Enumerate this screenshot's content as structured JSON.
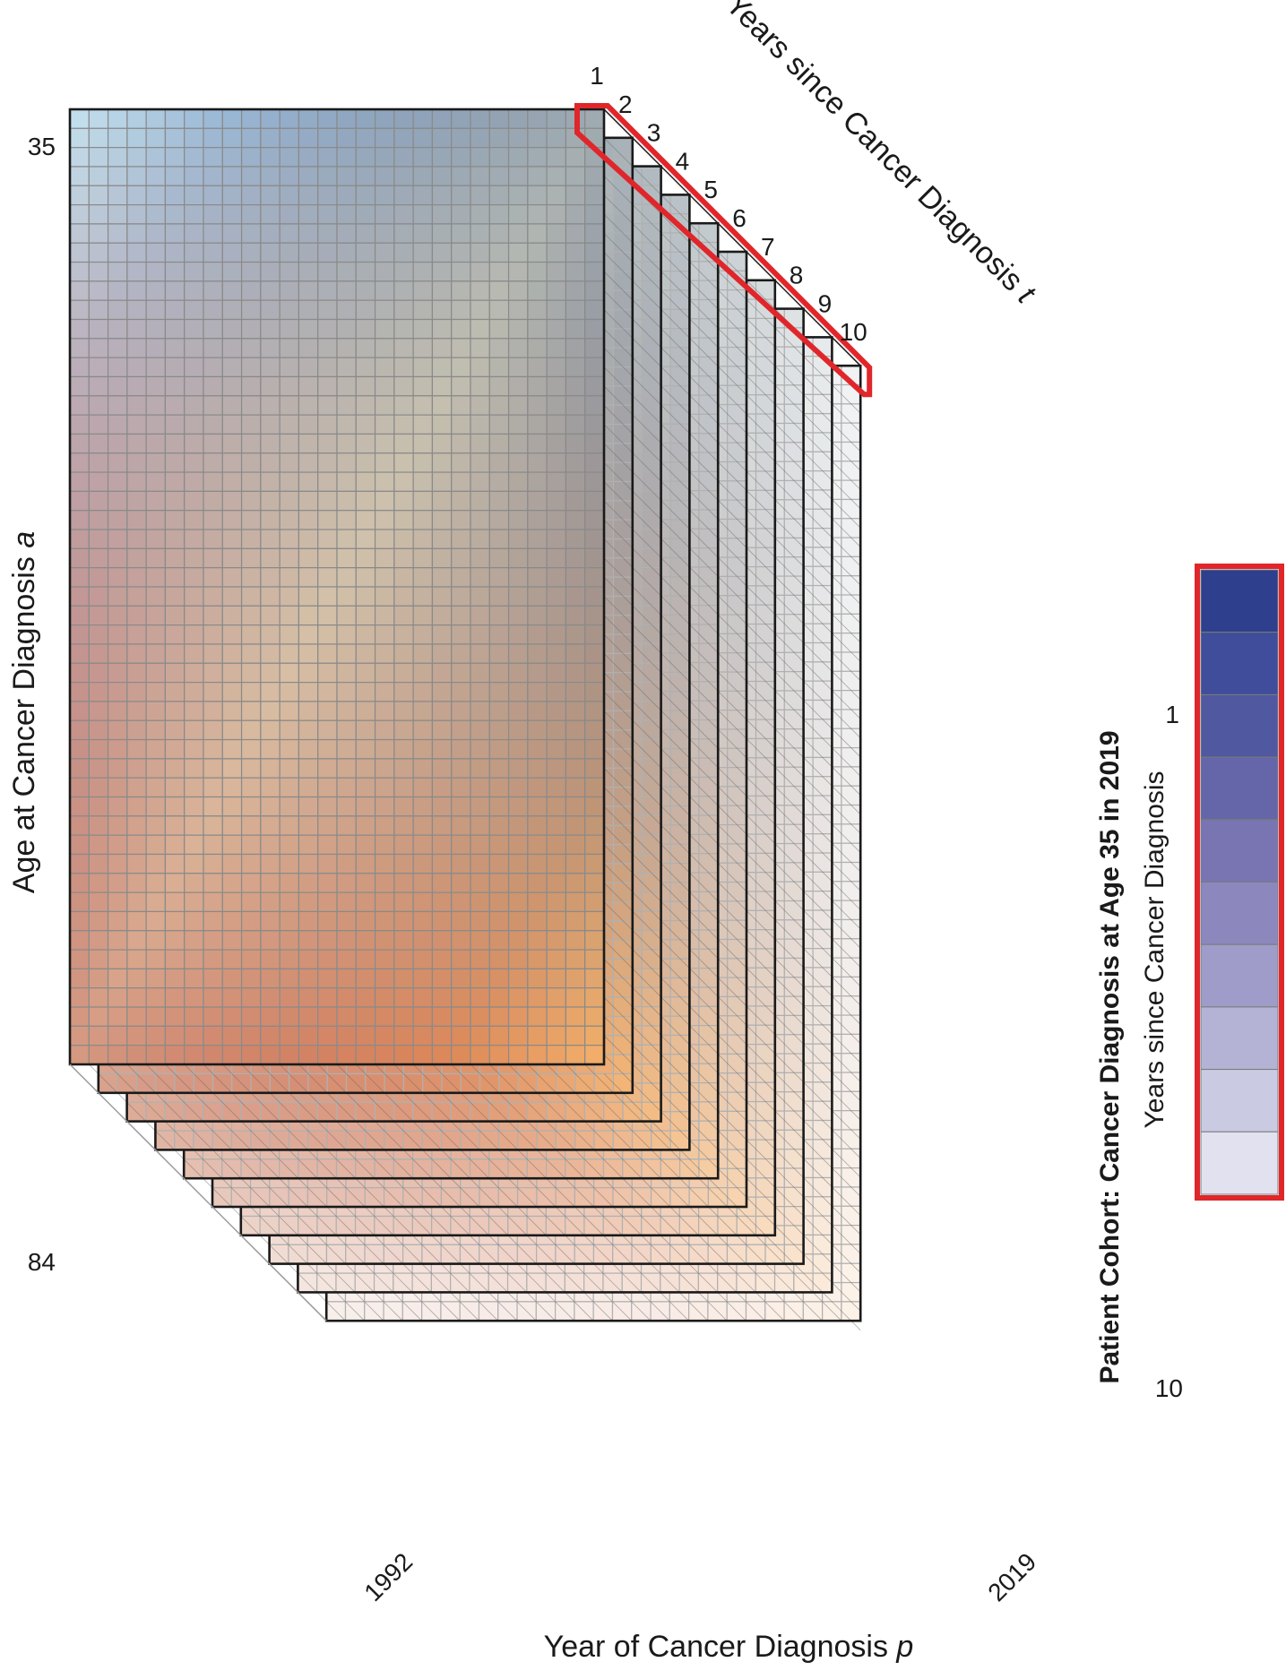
{
  "chart_data": {
    "type": "heatmap",
    "description_of_layers": "",
    "x_axis": {
      "label": "Year of Cancer Diagnosis ",
      "label_var": "p",
      "min": 1992,
      "max": 2019,
      "tick_labels": [
        "1992",
        "2019"
      ]
    },
    "y_axis": {
      "label": "Age at Cancer Diagnosis ",
      "label_var": "a",
      "min": 35,
      "max": 84,
      "tick_labels": [
        "35",
        "84"
      ]
    },
    "z_axis": {
      "label": "Years since Cancer Diagnosis ",
      "label_var": "t",
      "layers": [
        "1",
        "2",
        "3",
        "4",
        "5",
        "6",
        "7",
        "8",
        "9",
        "10"
      ]
    },
    "front_layer_colors": {
      "top_left": "#c4e2ef",
      "top_right": "#2f4f99",
      "bottom_left": "#a8262c",
      "bottom_right": "#f4b06a",
      "center": "#f9f4c4"
    },
    "highlight": {
      "cohort": "age 35 diagnosed in 2019",
      "color": "#e0262a"
    },
    "legend": {
      "title": "Patient Cohort: Cancer Diagnosis at Age 35 in 2019",
      "subtitle": "Years since Cancer Diagnosis",
      "tick_labels": [
        "1",
        "10"
      ],
      "swatches": [
        "#2e3f8e",
        "#3f4d9a",
        "#5058a0",
        "#6565a9",
        "#7875b2",
        "#8c88bd",
        "#a09cc9",
        "#b4b2d5",
        "#cacae2",
        "#e2e1f0"
      ]
    }
  }
}
